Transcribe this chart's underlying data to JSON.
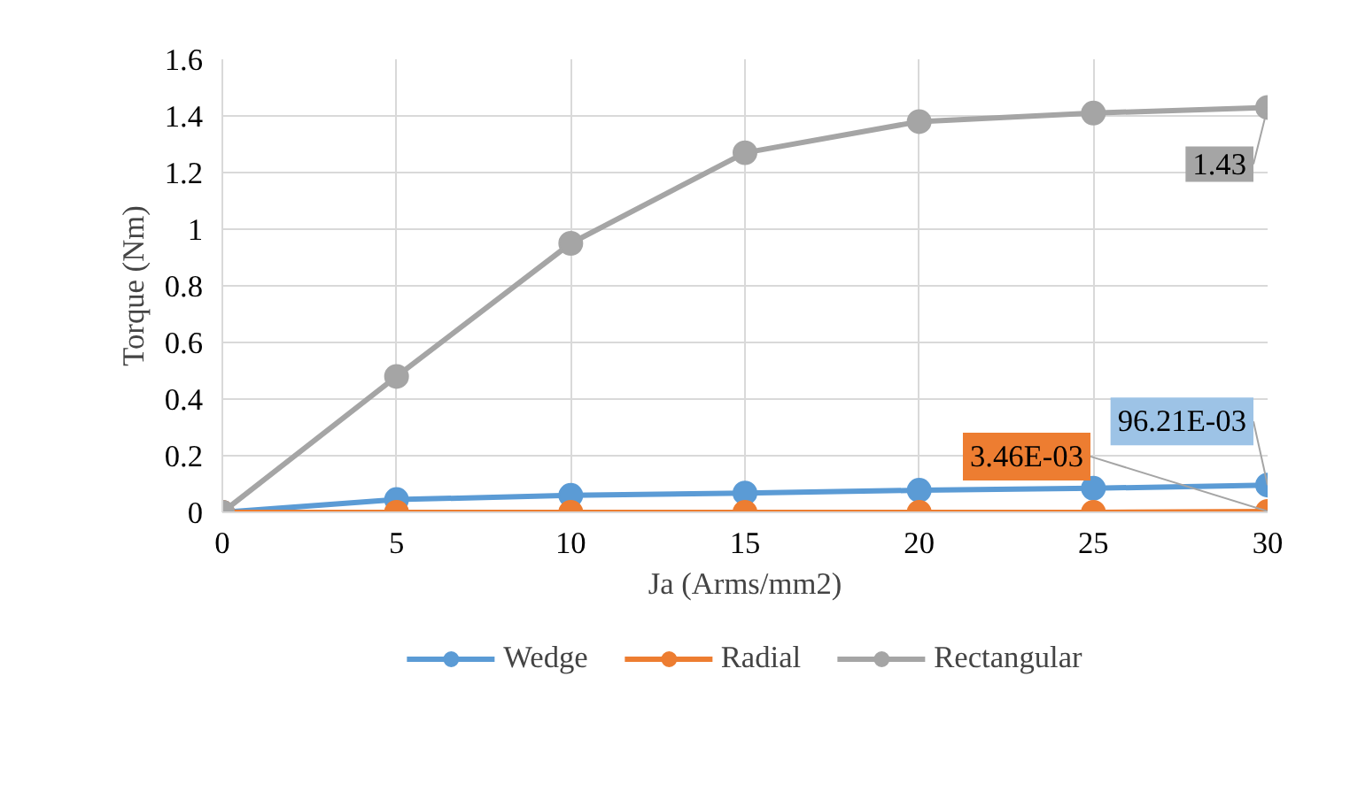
{
  "chart_data": {
    "type": "line",
    "xlabel": "Ja (Arms/mm2)",
    "ylabel": "Torque (Nm)",
    "x": [
      0,
      5,
      10,
      15,
      20,
      25,
      30
    ],
    "series": [
      {
        "name": "Wedge",
        "color": "#5b9bd5",
        "values": [
          0,
          0.045,
          0.06,
          0.068,
          0.078,
          0.085,
          0.09621
        ],
        "value_labels": [
          null,
          null,
          null,
          null,
          null,
          null,
          "96.21E-03"
        ]
      },
      {
        "name": "Radial",
        "color": "#ed7d31",
        "values": [
          0,
          0,
          0,
          0,
          0,
          0,
          0.00346
        ],
        "value_labels": [
          null,
          null,
          null,
          null,
          null,
          null,
          "3.46E-03"
        ]
      },
      {
        "name": "Rectangular",
        "color": "#a5a5a5",
        "values": [
          0,
          0.48,
          0.95,
          1.27,
          1.38,
          1.41,
          1.43
        ],
        "value_labels": [
          null,
          null,
          null,
          null,
          null,
          null,
          "1.43"
        ]
      }
    ],
    "xlim": [
      0,
      30
    ],
    "xticks": [
      0,
      5,
      10,
      15,
      20,
      25,
      30
    ],
    "ylim": [
      0,
      1.6
    ],
    "yticks": [
      0,
      {
        "value": 0.2,
        "label": "0.2"
      },
      {
        "value": 0.4,
        "label": "0.4"
      },
      {
        "value": 0.6,
        "label": "0.6"
      },
      {
        "value": 0.8,
        "label": "0.8"
      },
      1,
      {
        "value": 1.2,
        "label": "1.2"
      },
      {
        "value": 1.4,
        "label": "1.4"
      },
      {
        "value": 1.6,
        "label": "1.6"
      }
    ],
    "grid": true,
    "legend": "bottom",
    "marker": "circle",
    "line_style": "solid"
  }
}
